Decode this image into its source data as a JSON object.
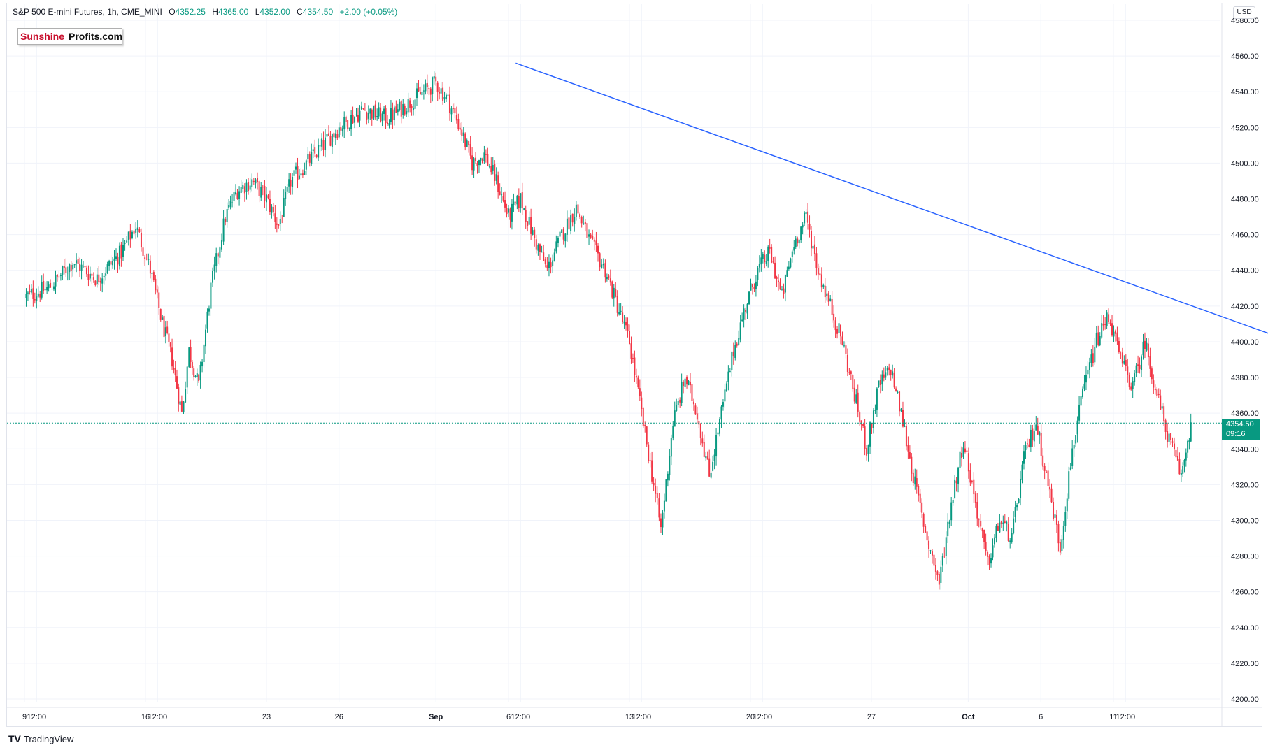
{
  "header": {
    "symbol": "S&P 500 E-mini Futures, 1h, CME_MINI",
    "o_label": "O",
    "o_value": "4352.25",
    "h_label": "H",
    "h_value": "4365.00",
    "l_label": "L",
    "l_value": "4352.00",
    "c_label": "C",
    "c_value": "4354.50",
    "change": "+2.00 (+0.05%)"
  },
  "logo": {
    "part1": "Sunshine",
    "part2": "Profits.com"
  },
  "currency": "USD",
  "last_price": {
    "value": "4354.50",
    "countdown": "09:16"
  },
  "brand": {
    "mark": "TV",
    "name": "TradingView"
  },
  "colors": {
    "up": "#089981",
    "down": "#f23645",
    "trendline": "#2962ff",
    "grid": "#f0f3fa"
  },
  "chart_data": {
    "type": "candlestick",
    "symbol": "S&P 500 E-mini Futures",
    "interval": "1h",
    "y_axis": {
      "ylim": [
        4194,
        4584
      ],
      "ticks": [
        4200,
        4220,
        4240,
        4260,
        4280,
        4300,
        4320,
        4340,
        4360,
        4380,
        4400,
        4420,
        4440,
        4460,
        4480,
        4500,
        4520,
        4540,
        4560,
        4580
      ],
      "tick_labels": [
        "4200.00",
        "4220.00",
        "4240.00",
        "4260.00",
        "4280.00",
        "4300.00",
        "4320.00",
        "4340.00",
        "4360.00",
        "4380.00",
        "4400.00",
        "4420.00",
        "4440.00",
        "4460.00",
        "4480.00",
        "4500.00",
        "4520.00",
        "4540.00",
        "4560.00",
        "4580.00"
      ]
    },
    "x_axis": {
      "ticks": [
        {
          "label": "9",
          "session": 0
        },
        {
          "label": "12:00",
          "session": 0.5
        },
        {
          "label": "16",
          "session": 5
        },
        {
          "label": "12:00",
          "session": 5.5
        },
        {
          "label": "23",
          "session": 10
        },
        {
          "label": "26",
          "session": 13
        },
        {
          "label": "Sep",
          "session": 17
        },
        {
          "label": "6",
          "session": 20
        },
        {
          "label": "12:00",
          "session": 20.5
        },
        {
          "label": "13",
          "session": 25
        },
        {
          "label": "12:00",
          "session": 25.5
        },
        {
          "label": "20",
          "session": 30
        },
        {
          "label": "12:00",
          "session": 30.5
        },
        {
          "label": "27",
          "session": 35
        },
        {
          "label": "Oct",
          "session": 39
        },
        {
          "label": "6",
          "session": 42
        },
        {
          "label": "11",
          "session": 45
        },
        {
          "label": "12:00",
          "session": 45.5
        }
      ]
    },
    "close_path": [
      [
        0,
        4425
      ],
      [
        1,
        4430
      ],
      [
        2,
        4445
      ],
      [
        3,
        4435
      ],
      [
        4,
        4450
      ],
      [
        4.6,
        4465
      ],
      [
        5.2,
        4440
      ],
      [
        5.7,
        4410
      ],
      [
        6.1,
        4390
      ],
      [
        6.5,
        4360
      ],
      [
        6.8,
        4395
      ],
      [
        7.2,
        4375
      ],
      [
        7.7,
        4430
      ],
      [
        8.3,
        4470
      ],
      [
        8.8,
        4485
      ],
      [
        9.4,
        4490
      ],
      [
        10,
        4480
      ],
      [
        10.5,
        4465
      ],
      [
        11,
        4490
      ],
      [
        12,
        4505
      ],
      [
        13,
        4520
      ],
      [
        14,
        4530
      ],
      [
        15,
        4525
      ],
      [
        16,
        4535
      ],
      [
        17,
        4545
      ],
      [
        17.5,
        4535
      ],
      [
        18,
        4520
      ],
      [
        18.5,
        4500
      ],
      [
        19,
        4505
      ],
      [
        19.5,
        4490
      ],
      [
        20,
        4470
      ],
      [
        20.5,
        4480
      ],
      [
        21,
        4460
      ],
      [
        21.6,
        4440
      ],
      [
        22.2,
        4460
      ],
      [
        22.8,
        4475
      ],
      [
        23.4,
        4455
      ],
      [
        24,
        4440
      ],
      [
        24.5,
        4420
      ],
      [
        25,
        4400
      ],
      [
        25.5,
        4360
      ],
      [
        26,
        4320
      ],
      [
        26.3,
        4295
      ],
      [
        26.8,
        4355
      ],
      [
        27.3,
        4380
      ],
      [
        27.8,
        4360
      ],
      [
        28.3,
        4325
      ],
      [
        28.8,
        4360
      ],
      [
        29.3,
        4395
      ],
      [
        29.8,
        4420
      ],
      [
        30.3,
        4440
      ],
      [
        30.8,
        4450
      ],
      [
        31.3,
        4425
      ],
      [
        31.8,
        4455
      ],
      [
        32.3,
        4470
      ],
      [
        32.8,
        4440
      ],
      [
        33.3,
        4420
      ],
      [
        33.8,
        4400
      ],
      [
        34.3,
        4370
      ],
      [
        34.8,
        4340
      ],
      [
        35.3,
        4375
      ],
      [
        35.8,
        4385
      ],
      [
        36.3,
        4355
      ],
      [
        36.8,
        4320
      ],
      [
        37.3,
        4290
      ],
      [
        37.8,
        4265
      ],
      [
        38.3,
        4310
      ],
      [
        38.8,
        4345
      ],
      [
        39.3,
        4310
      ],
      [
        39.8,
        4275
      ],
      [
        40.3,
        4300
      ],
      [
        40.8,
        4290
      ],
      [
        41.3,
        4335
      ],
      [
        41.8,
        4355
      ],
      [
        42.3,
        4320
      ],
      [
        42.8,
        4285
      ],
      [
        43.3,
        4340
      ],
      [
        43.8,
        4375
      ],
      [
        44.3,
        4400
      ],
      [
        44.8,
        4415
      ],
      [
        45.3,
        4390
      ],
      [
        45.8,
        4375
      ],
      [
        46.3,
        4400
      ],
      [
        46.8,
        4370
      ],
      [
        47.3,
        4345
      ],
      [
        47.8,
        4325
      ],
      [
        48.2,
        4354.5
      ]
    ],
    "trendline": {
      "start": {
        "session": 20.3,
        "price": 4556
      },
      "end": {
        "session": 53.4,
        "price": 4395
      }
    },
    "last_price": 4354.5
  }
}
